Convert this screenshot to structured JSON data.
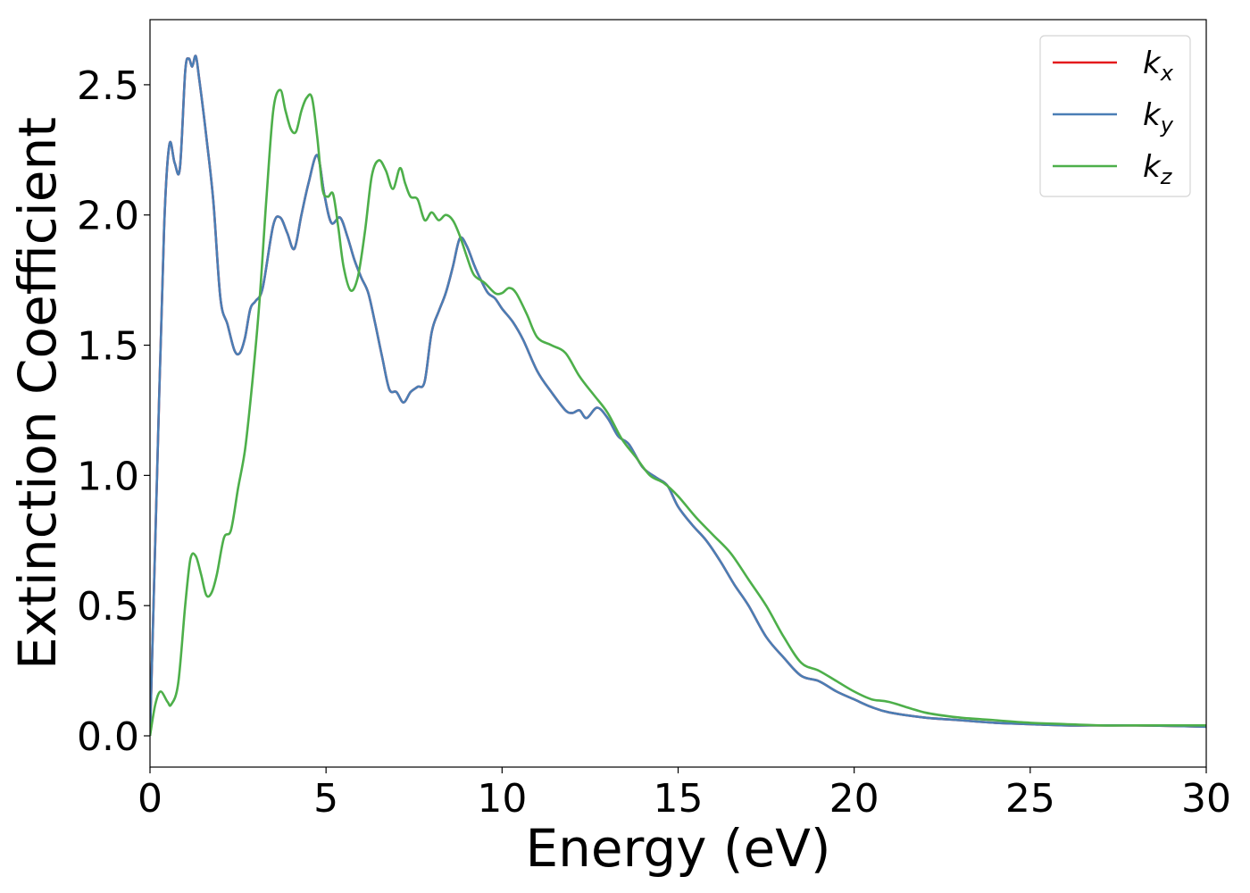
{
  "chart_data": {
    "type": "line",
    "title": "",
    "xlabel": "Energy (eV)",
    "ylabel": "Extinction Coefficient",
    "xlim": [
      0,
      30
    ],
    "ylim": [
      -0.12,
      2.75
    ],
    "xticks": [
      0,
      5,
      10,
      15,
      20,
      25,
      30
    ],
    "xtick_labels": [
      "0",
      "5",
      "10",
      "15",
      "20",
      "25",
      "30"
    ],
    "yticks": [
      0.0,
      0.5,
      1.0,
      1.5,
      2.0,
      2.5
    ],
    "ytick_labels": [
      "0.0",
      "0.5",
      "1.0",
      "1.5",
      "2.0",
      "2.5"
    ],
    "grid": false,
    "legend_position": "top-right",
    "series": [
      {
        "name": "k_x",
        "legend_base": "k",
        "legend_sub": "x",
        "color": "#e41a1c",
        "x": [
          0,
          0.2,
          0.4,
          0.55,
          0.7,
          0.85,
          1.0,
          1.1,
          1.2,
          1.3,
          1.4,
          1.6,
          1.8,
          2.0,
          2.2,
          2.4,
          2.55,
          2.7,
          2.85,
          3.0,
          3.2,
          3.5,
          3.7,
          3.9,
          4.1,
          4.3,
          4.5,
          4.75,
          4.95,
          5.15,
          5.4,
          5.6,
          5.8,
          6.0,
          6.2,
          6.4,
          6.6,
          6.8,
          7.0,
          7.2,
          7.4,
          7.6,
          7.8,
          8.0,
          8.2,
          8.4,
          8.6,
          8.8,
          9.0,
          9.2,
          9.4,
          9.6,
          9.8,
          10.0,
          10.3,
          10.6,
          11.0,
          11.4,
          11.8,
          12.0,
          12.2,
          12.4,
          12.7,
          13.0,
          13.3,
          13.6,
          14.0,
          14.4,
          14.7,
          15.0,
          15.4,
          15.8,
          16.2,
          16.6,
          17.0,
          17.5,
          18.0,
          18.5,
          19.0,
          19.5,
          20.0,
          20.5,
          21.0,
          22.0,
          23.0,
          24.0,
          25.0,
          26.0,
          27.0,
          28.0,
          29.0,
          30.0
        ],
        "values": [
          0.0,
          1.0,
          1.95,
          2.27,
          2.2,
          2.18,
          2.55,
          2.6,
          2.57,
          2.61,
          2.52,
          2.3,
          2.05,
          1.68,
          1.58,
          1.48,
          1.47,
          1.53,
          1.64,
          1.67,
          1.72,
          1.96,
          1.99,
          1.93,
          1.87,
          2.0,
          2.12,
          2.23,
          2.08,
          1.97,
          1.99,
          1.92,
          1.83,
          1.76,
          1.7,
          1.58,
          1.45,
          1.33,
          1.32,
          1.28,
          1.32,
          1.34,
          1.36,
          1.55,
          1.63,
          1.7,
          1.8,
          1.91,
          1.88,
          1.81,
          1.75,
          1.7,
          1.68,
          1.64,
          1.59,
          1.52,
          1.4,
          1.32,
          1.25,
          1.24,
          1.25,
          1.22,
          1.26,
          1.22,
          1.15,
          1.12,
          1.03,
          0.99,
          0.96,
          0.88,
          0.81,
          0.75,
          0.67,
          0.58,
          0.5,
          0.38,
          0.3,
          0.23,
          0.21,
          0.17,
          0.14,
          0.11,
          0.09,
          0.07,
          0.06,
          0.05,
          0.045,
          0.04,
          0.04,
          0.04,
          0.038,
          0.035
        ]
      },
      {
        "name": "k_y",
        "legend_base": "k",
        "legend_sub": "y",
        "color": "#4a7eb5",
        "x": [
          0,
          0.2,
          0.4,
          0.55,
          0.7,
          0.85,
          1.0,
          1.1,
          1.2,
          1.3,
          1.4,
          1.6,
          1.8,
          2.0,
          2.2,
          2.4,
          2.55,
          2.7,
          2.85,
          3.0,
          3.2,
          3.5,
          3.7,
          3.9,
          4.1,
          4.3,
          4.5,
          4.75,
          4.95,
          5.15,
          5.4,
          5.6,
          5.8,
          6.0,
          6.2,
          6.4,
          6.6,
          6.8,
          7.0,
          7.2,
          7.4,
          7.6,
          7.8,
          8.0,
          8.2,
          8.4,
          8.6,
          8.8,
          9.0,
          9.2,
          9.4,
          9.6,
          9.8,
          10.0,
          10.3,
          10.6,
          11.0,
          11.4,
          11.8,
          12.0,
          12.2,
          12.4,
          12.7,
          13.0,
          13.3,
          13.6,
          14.0,
          14.4,
          14.7,
          15.0,
          15.4,
          15.8,
          16.2,
          16.6,
          17.0,
          17.5,
          18.0,
          18.5,
          19.0,
          19.5,
          20.0,
          20.5,
          21.0,
          22.0,
          23.0,
          24.0,
          25.0,
          26.0,
          27.0,
          28.0,
          29.0,
          30.0
        ],
        "values": [
          0.0,
          1.0,
          1.95,
          2.27,
          2.2,
          2.18,
          2.55,
          2.6,
          2.57,
          2.61,
          2.52,
          2.3,
          2.05,
          1.68,
          1.58,
          1.48,
          1.47,
          1.53,
          1.64,
          1.67,
          1.72,
          1.96,
          1.99,
          1.93,
          1.87,
          2.0,
          2.12,
          2.23,
          2.08,
          1.97,
          1.99,
          1.92,
          1.83,
          1.76,
          1.7,
          1.58,
          1.45,
          1.33,
          1.32,
          1.28,
          1.32,
          1.34,
          1.36,
          1.55,
          1.63,
          1.7,
          1.8,
          1.91,
          1.88,
          1.81,
          1.75,
          1.7,
          1.68,
          1.64,
          1.59,
          1.52,
          1.4,
          1.32,
          1.25,
          1.24,
          1.25,
          1.22,
          1.26,
          1.22,
          1.15,
          1.12,
          1.03,
          0.99,
          0.96,
          0.88,
          0.81,
          0.75,
          0.67,
          0.58,
          0.5,
          0.38,
          0.3,
          0.23,
          0.21,
          0.17,
          0.14,
          0.11,
          0.09,
          0.07,
          0.06,
          0.05,
          0.045,
          0.04,
          0.04,
          0.04,
          0.038,
          0.035
        ]
      },
      {
        "name": "k_z",
        "legend_base": "k",
        "legend_sub": "z",
        "color": "#4daf4a",
        "x": [
          0,
          0.15,
          0.3,
          0.5,
          0.6,
          0.8,
          1.0,
          1.15,
          1.3,
          1.45,
          1.6,
          1.75,
          1.9,
          2.1,
          2.3,
          2.5,
          2.7,
          2.9,
          3.1,
          3.3,
          3.5,
          3.7,
          3.85,
          4.0,
          4.15,
          4.3,
          4.45,
          4.6,
          4.75,
          4.9,
          5.05,
          5.2,
          5.35,
          5.5,
          5.7,
          5.9,
          6.1,
          6.3,
          6.5,
          6.7,
          6.9,
          7.1,
          7.25,
          7.4,
          7.6,
          7.8,
          8.0,
          8.2,
          8.4,
          8.6,
          8.8,
          9.0,
          9.2,
          9.5,
          9.8,
          10.0,
          10.2,
          10.4,
          10.7,
          11.0,
          11.4,
          11.8,
          12.2,
          12.6,
          13.0,
          13.4,
          13.8,
          14.2,
          14.6,
          15.0,
          15.5,
          16.0,
          16.5,
          17.0,
          17.5,
          18.0,
          18.5,
          19.0,
          19.5,
          20.0,
          20.5,
          21.0,
          22.0,
          23.0,
          24.0,
          25.0,
          26.0,
          27.0,
          28.0,
          29.0,
          30.0
        ],
        "values": [
          0.0,
          0.12,
          0.17,
          0.13,
          0.12,
          0.2,
          0.5,
          0.68,
          0.69,
          0.62,
          0.54,
          0.55,
          0.62,
          0.76,
          0.79,
          0.95,
          1.1,
          1.35,
          1.65,
          2.05,
          2.4,
          2.48,
          2.4,
          2.33,
          2.32,
          2.4,
          2.45,
          2.45,
          2.3,
          2.1,
          2.07,
          2.08,
          1.95,
          1.8,
          1.71,
          1.76,
          1.93,
          2.15,
          2.21,
          2.17,
          2.1,
          2.18,
          2.12,
          2.07,
          2.06,
          1.98,
          2.01,
          1.98,
          2.0,
          1.98,
          1.92,
          1.84,
          1.77,
          1.74,
          1.7,
          1.7,
          1.72,
          1.7,
          1.62,
          1.53,
          1.5,
          1.47,
          1.38,
          1.31,
          1.24,
          1.14,
          1.07,
          1.0,
          0.97,
          0.92,
          0.84,
          0.77,
          0.7,
          0.6,
          0.5,
          0.38,
          0.28,
          0.25,
          0.21,
          0.17,
          0.14,
          0.13,
          0.09,
          0.07,
          0.06,
          0.05,
          0.045,
          0.04,
          0.04,
          0.04,
          0.04
        ]
      }
    ]
  }
}
